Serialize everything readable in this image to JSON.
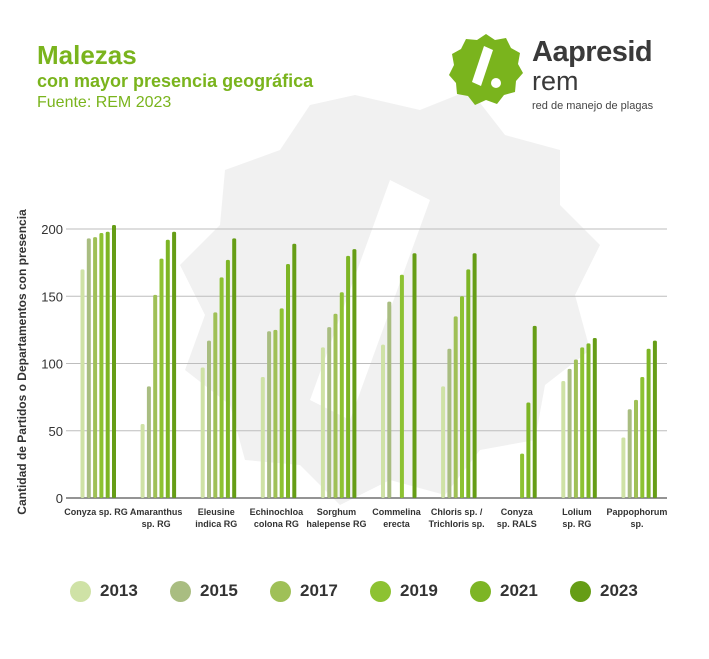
{
  "header": {
    "title": "Malezas",
    "subtitle": "con mayor presencia geográfica",
    "source": "Fuente: REM 2023"
  },
  "logo": {
    "brand": "Aapresid",
    "sub": "rem",
    "tagline": "red de manejo de plagas",
    "icon": "aapresid-slash-badge-icon"
  },
  "colors": {
    "brand_green": "#7ab41d",
    "series": [
      "#cfe2a6",
      "#a9bd81",
      "#9fc057",
      "#8dc232",
      "#7db525",
      "#669d16"
    ],
    "grid": "#bdbdbd",
    "axis": "#555555"
  },
  "chart_data": {
    "type": "bar",
    "title": "",
    "xlabel": "",
    "ylabel": "Cantidad de Partidos o Departamentos con presencia",
    "ylim": [
      0,
      200
    ],
    "yticks": [
      0,
      50,
      100,
      150,
      200
    ],
    "grid": true,
    "legend_position": "bottom",
    "categories": [
      [
        "Conyza sp. RG"
      ],
      [
        "Amaranthus",
        "sp. RG"
      ],
      [
        "Eleusine",
        "indica RG"
      ],
      [
        "Echinochloa",
        "colona RG"
      ],
      [
        "Sorghum",
        "halepense RG"
      ],
      [
        "Commelina",
        "erecta"
      ],
      [
        "Chloris sp. /",
        "Trichloris sp."
      ],
      [
        "Conyza",
        "sp. RALS"
      ],
      [
        "Lolium",
        "sp. RG"
      ],
      [
        "Pappophorum",
        "sp."
      ]
    ],
    "series": [
      {
        "name": "2013",
        "values": [
          170,
          55,
          97,
          90,
          112,
          114,
          83,
          null,
          87,
          45
        ]
      },
      {
        "name": "2015",
        "values": [
          193,
          83,
          117,
          124,
          127,
          146,
          111,
          null,
          96,
          66
        ]
      },
      {
        "name": "2017",
        "values": [
          194,
          151,
          138,
          125,
          137,
          null,
          135,
          null,
          103,
          73
        ]
      },
      {
        "name": "2019",
        "values": [
          197,
          178,
          164,
          141,
          153,
          166,
          150,
          33,
          112,
          90
        ]
      },
      {
        "name": "2021",
        "values": [
          198,
          192,
          177,
          174,
          180,
          null,
          170,
          71,
          115,
          111
        ]
      },
      {
        "name": "2023",
        "values": [
          203,
          198,
          193,
          189,
          185,
          182,
          182,
          128,
          119,
          117
        ]
      }
    ]
  }
}
